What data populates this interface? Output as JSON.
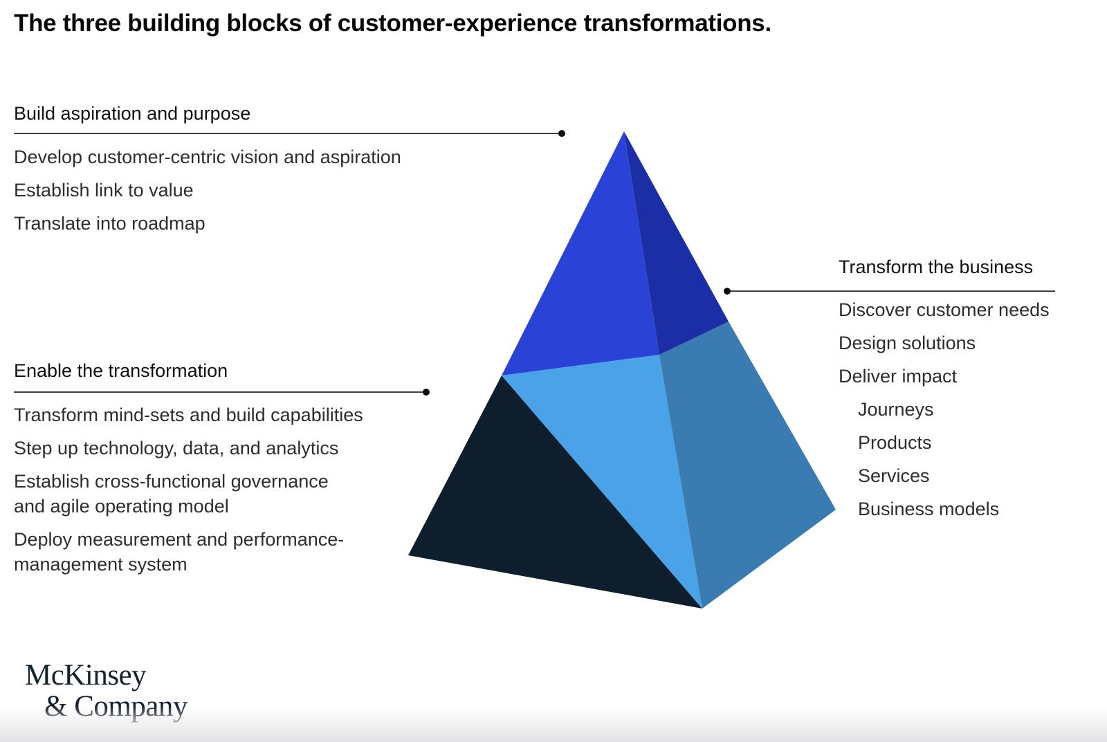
{
  "page": {
    "title": "The three building blocks of customer-experience transformations."
  },
  "colors": {
    "face_top_left": "#2B42D6",
    "face_top_right": "#1C2EA6",
    "face_lower_front": "#4AA3E8",
    "face_lower_right": "#3A7CB2",
    "face_lower_left": "#0E1E2C",
    "callout_line": "#3f3f3f",
    "callout_dot": "#0b0b0b"
  },
  "blocks": {
    "aspiration": {
      "heading": "Build aspiration and purpose",
      "items": [
        {
          "lines": [
            "Develop customer-centric vision and aspiration"
          ]
        },
        {
          "lines": [
            "Establish link to value"
          ]
        },
        {
          "lines": [
            "Translate into roadmap"
          ]
        }
      ]
    },
    "enable": {
      "heading": "Enable the transformation",
      "items": [
        {
          "lines": [
            "Transform mind-sets and build capabilities"
          ]
        },
        {
          "lines": [
            "Step up technology, data, and analytics"
          ]
        },
        {
          "lines": [
            "Establish cross-functional governance",
            "and agile operating model"
          ]
        },
        {
          "lines": [
            "Deploy measurement and performance-",
            "management system"
          ]
        }
      ]
    },
    "transform": {
      "heading": "Transform the business",
      "items": [
        {
          "lines": [
            "Discover customer needs"
          ]
        },
        {
          "lines": [
            "Design solutions"
          ]
        },
        {
          "lines": [
            "Deliver impact"
          ]
        },
        {
          "lines": [
            "Journeys"
          ],
          "indent": true
        },
        {
          "lines": [
            "Products"
          ],
          "indent": true
        },
        {
          "lines": [
            "Services"
          ],
          "indent": true
        },
        {
          "lines": [
            "Business models"
          ],
          "indent": true
        }
      ]
    }
  },
  "logo": {
    "line1": "McKinsey",
    "line2": "& Company"
  }
}
